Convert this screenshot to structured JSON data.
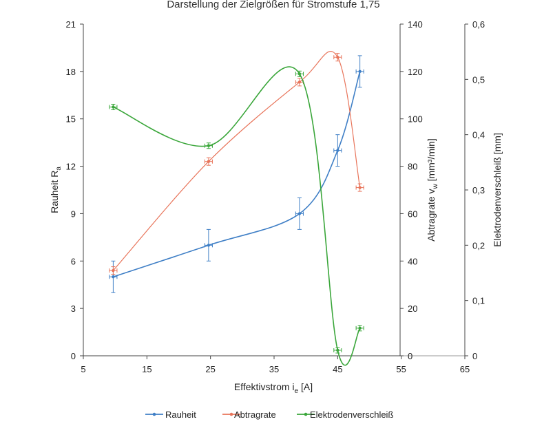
{
  "chart_data": {
    "type": "line",
    "title": "Darstellung der Zielgrößen für Stromstufe 1,75",
    "x_axis": {
      "label": "Effektivstrom i",
      "label_sub": "e",
      "label_unit": " [A]",
      "min": 5,
      "max": 65,
      "ticks": [
        5,
        15,
        25,
        35,
        45,
        55,
        65
      ],
      "tick_labels": [
        "5",
        "15",
        "25",
        "35",
        "45",
        "55",
        "65"
      ]
    },
    "y_axes": [
      {
        "id": "left",
        "label": "Rauheit R",
        "label_sub": "a",
        "label_unit": "",
        "min": 0,
        "max": 21,
        "ticks": [
          0,
          3,
          6,
          9,
          12,
          15,
          18,
          21
        ],
        "tick_labels": [
          "0",
          "3",
          "6",
          "9",
          "12",
          "15",
          "18",
          "21"
        ]
      },
      {
        "id": "right1",
        "label": "Abtragrate v",
        "label_sub": "w",
        "label_unit": " [mm³/min]",
        "min": 0,
        "max": 140,
        "ticks": [
          0,
          20,
          40,
          60,
          80,
          100,
          120,
          140
        ],
        "tick_labels": [
          "0",
          "20",
          "40",
          "60",
          "80",
          "100",
          "120",
          "140"
        ]
      },
      {
        "id": "right2",
        "label": "Elektrodenverschleiß [mm]",
        "label_sub": "",
        "label_unit": "",
        "min": 0,
        "max": 0.6,
        "ticks": [
          0,
          0.1,
          0.2,
          0.3,
          0.4,
          0.5,
          0.6
        ],
        "tick_labels": [
          "0",
          "0,1",
          "0,2",
          "0,3",
          "0,4",
          "0,5",
          "0,6"
        ]
      }
    ],
    "series": [
      {
        "name": "Rauheit",
        "axis": "left",
        "color": "#3f7fc6",
        "x": [
          9.7,
          24.7,
          39.0,
          45.0,
          48.5
        ],
        "y": [
          5.0,
          7.0,
          9.0,
          13.0,
          18.0
        ],
        "y_err": [
          1.0,
          1.0,
          1.0,
          1.0,
          1.0
        ],
        "x_err": [
          0.6,
          0.6,
          0.6,
          0.6,
          0.6
        ]
      },
      {
        "name": "Abtragrate",
        "axis": "right1",
        "color": "#e8745a",
        "x": [
          9.7,
          24.7,
          39.0,
          45.0,
          48.5
        ],
        "y": [
          36.0,
          82.0,
          115.5,
          126.0,
          71.0
        ],
        "y_err": [
          1.6,
          1.6,
          1.6,
          1.6,
          1.6
        ],
        "x_err": [
          0.6,
          0.6,
          0.6,
          0.6,
          0.6
        ]
      },
      {
        "name": "Elektrodenverschleiß",
        "axis": "right2",
        "color": "#3aa63a",
        "x": [
          9.7,
          24.7,
          39.0,
          45.0,
          48.5
        ],
        "y": [
          0.45,
          0.38,
          0.51,
          0.01,
          0.05
        ],
        "y_err": [
          0.005,
          0.005,
          0.005,
          0.005,
          0.005
        ],
        "x_err": [
          0.6,
          0.6,
          0.6,
          0.6,
          0.6
        ]
      }
    ],
    "legend": {
      "position": "bottom",
      "entries": [
        "Rauheit",
        "Abtragrate",
        "Elektrodenverschleiß"
      ]
    },
    "grid": false
  }
}
